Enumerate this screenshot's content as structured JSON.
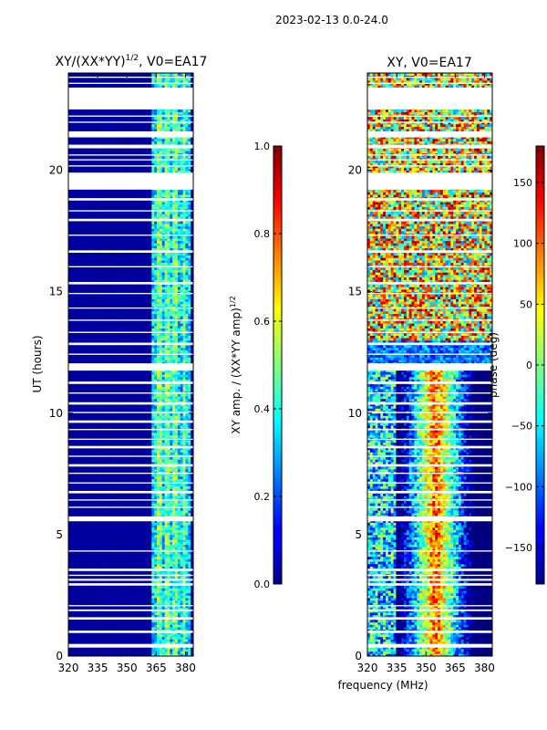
{
  "figure": {
    "suptitle": "2023-02-13 0.0-24.0",
    "shared_xlabel": "frequency (MHz)"
  },
  "chart_data": [
    {
      "type": "heatmap",
      "title_main": "XY/(XX*YY)",
      "title_exp": "1/2",
      "title_tail": ", V0=EA17",
      "xlabel": "",
      "ylabel": "UT (hours)",
      "xlim": [
        320,
        384
      ],
      "ylim": [
        0,
        24
      ],
      "xticks": [
        320,
        335,
        350,
        365,
        380
      ],
      "yticks": [
        0,
        5,
        10,
        15,
        20
      ],
      "colormap": "jet",
      "colorbar": {
        "label_main": "XY amp. / (XX*YY amp)",
        "label_exp": "1/2",
        "range": [
          0.0,
          1.0
        ],
        "ticks": [
          "0.0",
          "0.2",
          "0.4",
          "0.6",
          "0.8",
          "1.0"
        ],
        "tick_values": [
          0.0,
          0.2,
          0.4,
          0.6,
          0.8,
          1.0
        ]
      },
      "active_band_mhz": [
        363,
        382
      ],
      "background_value": 0.02,
      "band_value_range": [
        0.2,
        0.55
      ]
    },
    {
      "type": "heatmap",
      "title_main": "XY, V0=EA17",
      "xlabel": "frequency (MHz)",
      "ylabel": "",
      "xlim": [
        320,
        384
      ],
      "ylim": [
        0,
        24
      ],
      "xticks": [
        320,
        335,
        350,
        365,
        380
      ],
      "yticks": [
        0,
        5,
        10,
        15,
        20
      ],
      "colormap": "jet",
      "colorbar": {
        "label_main": "phase (deg)",
        "range": [
          -180,
          180
        ],
        "ticks": [
          "−150",
          "−100",
          "−50",
          "0",
          "50",
          "100",
          "150"
        ],
        "tick_values": [
          -150,
          -100,
          -50,
          0,
          50,
          100,
          150
        ]
      },
      "phase_ridge_mhz": 355
    }
  ],
  "flagged_gaps_hours": [
    [
      0.35,
      0.5
    ],
    [
      0.95,
      1.05
    ],
    [
      1.5,
      1.6
    ],
    [
      1.85,
      1.92
    ],
    [
      2.05,
      2.1
    ],
    [
      2.9,
      3.0
    ],
    [
      3.1,
      3.18
    ],
    [
      3.3,
      3.35
    ],
    [
      3.5,
      3.6
    ],
    [
      4.3,
      4.35
    ],
    [
      5.55,
      5.75
    ],
    [
      6.1,
      6.15
    ],
    [
      6.4,
      6.45
    ],
    [
      6.7,
      6.8
    ],
    [
      7.1,
      7.15
    ],
    [
      7.5,
      7.55
    ],
    [
      7.8,
      7.9
    ],
    [
      8.2,
      8.25
    ],
    [
      8.55,
      8.65
    ],
    [
      8.9,
      8.95
    ],
    [
      9.3,
      9.35
    ],
    [
      9.6,
      9.7
    ],
    [
      10.0,
      10.05
    ],
    [
      10.35,
      10.45
    ],
    [
      10.8,
      10.85
    ],
    [
      11.2,
      11.3
    ],
    [
      11.75,
      12.05
    ],
    [
      12.4,
      12.45
    ],
    [
      12.8,
      12.9
    ],
    [
      13.3,
      13.35
    ],
    [
      13.8,
      13.85
    ],
    [
      14.3,
      14.35
    ],
    [
      14.9,
      14.95
    ],
    [
      15.3,
      15.4
    ],
    [
      16.0,
      16.05
    ],
    [
      16.6,
      16.7
    ],
    [
      17.3,
      17.35
    ],
    [
      17.9,
      18.0
    ],
    [
      18.3,
      18.35
    ],
    [
      18.75,
      18.85
    ],
    [
      19.2,
      19.9
    ],
    [
      20.15,
      20.2
    ],
    [
      20.4,
      20.45
    ],
    [
      20.6,
      20.65
    ],
    [
      20.9,
      21.05
    ],
    [
      21.35,
      21.6
    ],
    [
      21.95,
      22.0
    ],
    [
      22.2,
      22.25
    ],
    [
      22.5,
      23.4
    ],
    [
      23.55,
      23.6
    ],
    [
      23.8,
      23.85
    ]
  ]
}
